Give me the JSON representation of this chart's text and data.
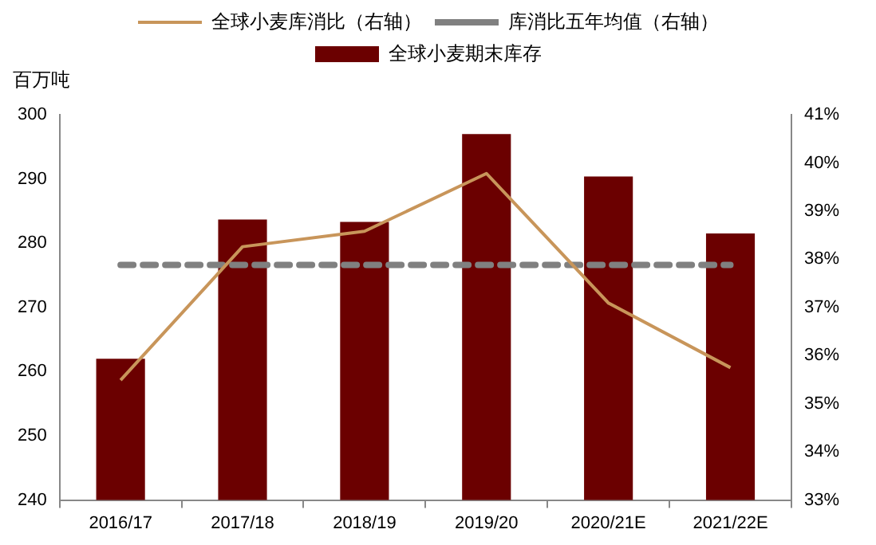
{
  "chart_data": {
    "type": "bar",
    "ylabel": "百万吨",
    "categories": [
      "2016/17",
      "2017/18",
      "2018/19",
      "2019/20",
      "2020/21E",
      "2021/22E"
    ],
    "series": [
      {
        "name": "全球小麦期末库存",
        "color": "#6b0000",
        "values": [
          262.0,
          283.7,
          283.3,
          297.0,
          290.4,
          281.5
        ]
      },
      {
        "name": "全球小麦库消比（右轴）",
        "type": "line",
        "axis": "y2",
        "color": "#c8955a",
        "values": [
          35.49,
          38.26,
          38.58,
          39.78,
          37.09,
          35.75
        ]
      }
    ],
    "ref_lines": [
      {
        "axis": "y2",
        "value": 37.88,
        "label": "库消比五年均值（右轴）",
        "color": "#808080",
        "line_style": "dashed"
      }
    ],
    "ylim": [
      240,
      300
    ],
    "yticks": [
      240,
      250,
      260,
      270,
      280,
      290,
      300
    ],
    "y2lim": [
      33,
      41
    ],
    "y2ticks": [
      {
        "value": 33,
        "label": "33%"
      },
      {
        "value": 34,
        "label": "34%"
      },
      {
        "value": 35,
        "label": "35%"
      },
      {
        "value": 36,
        "label": "36%"
      },
      {
        "value": 37,
        "label": "37%"
      },
      {
        "value": 38,
        "label": "38%"
      },
      {
        "value": 39,
        "label": "39%"
      },
      {
        "value": 40,
        "label": "40%"
      },
      {
        "value": 41,
        "label": "41%"
      }
    ],
    "grid": false,
    "legend": "top",
    "marker": "none"
  }
}
